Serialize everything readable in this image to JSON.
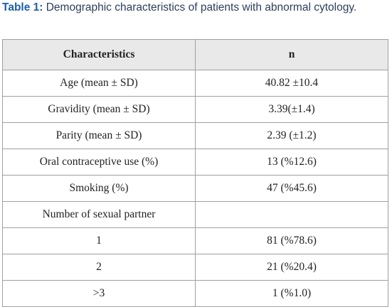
{
  "caption": {
    "label": "Table 1:",
    "text": "Demographic characteristics of patients with abnormal cytology."
  },
  "table": {
    "header": [
      "Characteristics",
      "n"
    ],
    "rows": [
      [
        "Age (mean ± SD)",
        "40.82 ±10.4"
      ],
      [
        "Gravidity (mean ± SD)",
        "3.39(±1.4)"
      ],
      [
        "Parity (mean ± SD)",
        "2.39 (±1.2)"
      ],
      [
        "Oral contraceptive use (%)",
        "13 (%12.6)"
      ],
      [
        "Smoking (%)",
        "47 (%45.6)"
      ],
      [
        "Number of sexual partner"
      ],
      [
        "1",
        "81 (%78.6)"
      ],
      [
        "2",
        "21 (%20.4)"
      ],
      [
        ">3",
        "1 (%1.0)"
      ]
    ]
  }
}
